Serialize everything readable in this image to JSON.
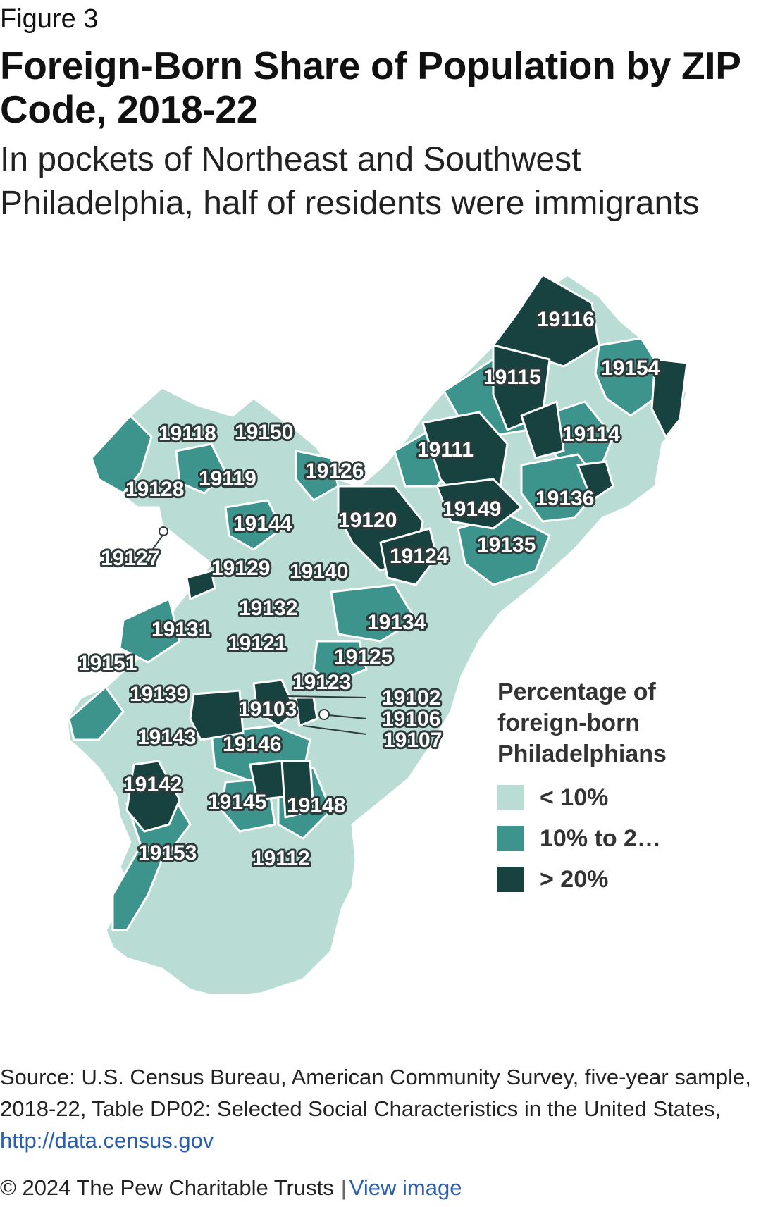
{
  "figure_label": "Figure 3",
  "title": "Foreign-Born Share of Population by ZIP Code, 2018-22",
  "subtitle": "In pockets of Northeast and Southwest Philadelphia, half of residents were immigrants",
  "legend": {
    "title": "Percentage of foreign-born Philadelphians",
    "items": [
      {
        "label": "< 10%",
        "color": "#b9ddd5"
      },
      {
        "label": "10% to 2…",
        "color": "#3d948d"
      },
      {
        "label": "> 20%",
        "color": "#17423f"
      }
    ]
  },
  "colors": {
    "low": "#b9ddd5",
    "mid": "#3d948d",
    "high": "#17423f",
    "border": "#ffffff"
  },
  "zip_labels": {
    "z19116": "19116",
    "z19154": "19154",
    "z19115": "19115",
    "z19114": "19114",
    "z19111": "19111",
    "z19118": "19118",
    "z19150": "19150",
    "z19126": "19126",
    "z19119": "19119",
    "z19128": "19128",
    "z19136": "19136",
    "z19149": "19149",
    "z19120": "19120",
    "z19144": "19144",
    "z19135": "19135",
    "z19127": "19127",
    "z19124": "19124",
    "z19129": "19129",
    "z19140": "19140",
    "z19132": "19132",
    "z19134": "19134",
    "z19131": "19131",
    "z19121": "19121",
    "z19125": "19125",
    "z19151": "19151",
    "z19123": "19123",
    "z19139": "19139",
    "z19102": "19102",
    "z19103": "19103",
    "z19106": "19106",
    "z19107": "19107",
    "z19143": "19143",
    "z19146": "19146",
    "z19142": "19142",
    "z19145": "19145",
    "z19148": "19148",
    "z19153": "19153",
    "z19112": "19112"
  },
  "source": {
    "text": "Source: U.S. Census Bureau, American Community Survey, five-year sample, 2018-22, Table DP02: Selected Social Characteristics in the United States,",
    "link_text": "http://data.census.gov"
  },
  "footer": {
    "copyright": "© 2024 The Pew Charitable Trusts",
    "separator": "|",
    "view_image": "View image"
  }
}
